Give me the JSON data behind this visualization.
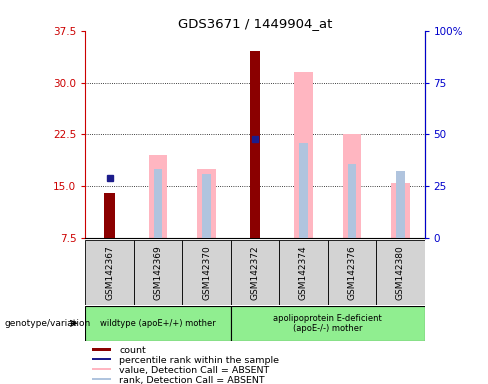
{
  "title": "GDS3671 / 1449904_at",
  "samples": [
    "GSM142367",
    "GSM142369",
    "GSM142370",
    "GSM142372",
    "GSM142374",
    "GSM142376",
    "GSM142380"
  ],
  "count_values": [
    14.0,
    null,
    null,
    34.5,
    null,
    null,
    null
  ],
  "percentile_rank_values": [
    16.2,
    null,
    null,
    21.8,
    null,
    null,
    null
  ],
  "value_absent": [
    null,
    19.5,
    17.5,
    null,
    31.5,
    22.5,
    15.5
  ],
  "rank_absent_top": [
    null,
    17.5,
    16.8,
    21.5,
    21.3,
    18.2,
    17.2
  ],
  "ylim_left": [
    7.5,
    37.5
  ],
  "ylim_right": [
    0,
    100
  ],
  "yticks_left": [
    7.5,
    15.0,
    22.5,
    30.0,
    37.5
  ],
  "yticks_right": [
    0,
    25,
    50,
    75,
    100
  ],
  "color_count": "#8B0000",
  "color_percentile": "#1C1C8B",
  "color_value_absent": "#FFB6C1",
  "color_rank_absent": "#B0C4DE",
  "group1_label": "wildtype (apoE+/+) mother",
  "group2_label": "apolipoprotein E-deficient\n(apoE-/-) mother",
  "genotype_label": "genotype/variation",
  "legend_items": [
    {
      "label": "count",
      "color": "#8B0000"
    },
    {
      "label": "percentile rank within the sample",
      "color": "#1C1C8B"
    },
    {
      "label": "value, Detection Call = ABSENT",
      "color": "#FFB6C1"
    },
    {
      "label": "rank, Detection Call = ABSENT",
      "color": "#B0C4DE"
    }
  ],
  "bar_bottom": 7.5,
  "fig_bg": "#ffffff",
  "axis_label_color_left": "#CC0000",
  "axis_label_color_right": "#0000CC"
}
